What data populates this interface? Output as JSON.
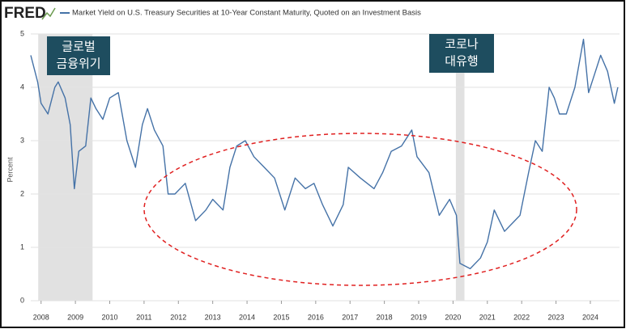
{
  "logo": "FRED",
  "chart_data": {
    "type": "line",
    "title": "Market Yield on U.S. Treasury Securities at 10-Year Constant Maturity, Quoted on an Investment Basis",
    "ylabel": "Percent",
    "x": [
      2007.7,
      2007.9,
      2008.0,
      2008.2,
      2008.4,
      2008.5,
      2008.7,
      2008.85,
      2008.97,
      2009.1,
      2009.3,
      2009.45,
      2009.6,
      2009.8,
      2010.0,
      2010.25,
      2010.5,
      2010.75,
      2010.95,
      2011.1,
      2011.3,
      2011.55,
      2011.7,
      2011.9,
      2012.2,
      2012.5,
      2012.8,
      2013.0,
      2013.3,
      2013.5,
      2013.7,
      2013.95,
      2014.2,
      2014.5,
      2014.8,
      2015.1,
      2015.4,
      2015.7,
      2015.95,
      2016.2,
      2016.5,
      2016.8,
      2016.95,
      2017.3,
      2017.7,
      2017.95,
      2018.2,
      2018.5,
      2018.8,
      2018.95,
      2019.3,
      2019.6,
      2019.9,
      2020.1,
      2020.2,
      2020.5,
      2020.8,
      2021.0,
      2021.2,
      2021.5,
      2021.8,
      2021.95,
      2022.2,
      2022.4,
      2022.6,
      2022.8,
      2022.95,
      2023.1,
      2023.3,
      2023.55,
      2023.8,
      2023.95,
      2024.1,
      2024.3,
      2024.5,
      2024.7,
      2024.8
    ],
    "series": [
      {
        "name": "Market Yield on U.S. Treasury Securities at 10-Year Constant Maturity, Quoted on an Investment Basis",
        "color": "#4572a7",
        "values": [
          4.6,
          4.1,
          3.7,
          3.5,
          4.0,
          4.1,
          3.8,
          3.3,
          2.1,
          2.8,
          2.9,
          3.8,
          3.6,
          3.4,
          3.8,
          3.9,
          3.0,
          2.5,
          3.3,
          3.6,
          3.2,
          2.9,
          2.0,
          2.0,
          2.2,
          1.5,
          1.7,
          1.9,
          1.7,
          2.5,
          2.9,
          3.0,
          2.7,
          2.5,
          2.3,
          1.7,
          2.3,
          2.1,
          2.2,
          1.8,
          1.4,
          1.8,
          2.5,
          2.3,
          2.1,
          2.4,
          2.8,
          2.9,
          3.2,
          2.7,
          2.4,
          1.6,
          1.9,
          1.6,
          0.7,
          0.6,
          0.8,
          1.1,
          1.7,
          1.3,
          1.5,
          1.6,
          2.4,
          3.0,
          2.8,
          4.0,
          3.8,
          3.5,
          3.5,
          4.0,
          4.9,
          3.9,
          4.2,
          4.6,
          4.3,
          3.7,
          4.0
        ]
      }
    ],
    "recessions": [
      [
        2007.917,
        2009.5
      ],
      [
        2020.083,
        2020.333
      ]
    ],
    "annotations": [
      [
        "글로벌",
        "금융위기"
      ],
      [
        "코로나",
        "대유행"
      ]
    ],
    "xlim": [
      2007.7,
      2024.85
    ],
    "ylim": [
      0,
      5
    ],
    "xticks": [
      2008,
      2009,
      2010,
      2011,
      2012,
      2013,
      2014,
      2015,
      2016,
      2017,
      2018,
      2019,
      2020,
      2021,
      2022,
      2023,
      2024
    ],
    "yticks": [
      0,
      1,
      2,
      3,
      4,
      5
    ],
    "grid": true
  }
}
